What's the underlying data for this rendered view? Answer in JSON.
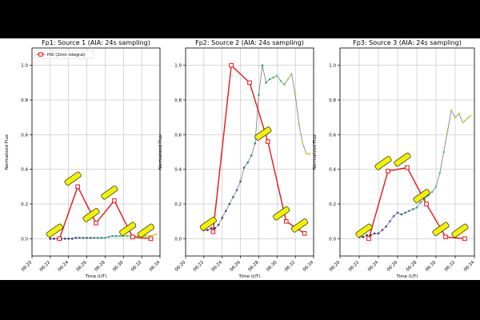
{
  "chart_data": [
    {
      "type": "line",
      "title": "Fp1: Source 1 (AIA: 24s sampling)",
      "xlabel": "Time (UT)",
      "ylabel": "Normalized Flux",
      "x_ticks": [
        "06:20",
        "06:22",
        "06:24",
        "06:26",
        "06:28",
        "06:30",
        "06:32",
        "06:34"
      ],
      "y_ticks": [
        "0.0",
        "0.2",
        "0.4",
        "0.6",
        "0.8",
        "1.0"
      ],
      "xlim": [
        "06:20",
        "06:34"
      ],
      "ylim": [
        -0.1,
        1.1
      ],
      "grid": true,
      "legend": {
        "location": "top-left",
        "entries": [
          "HXI (2min integral)"
        ]
      },
      "series": [
        {
          "name": "HXI (2min integral)",
          "color": "#e8141a",
          "marker": "open-square",
          "x": [
            "06:23:00",
            "06:25:00",
            "06:27:00",
            "06:29:00",
            "06:31:00",
            "06:33:00"
          ],
          "y": [
            0.0,
            0.3,
            0.09,
            0.22,
            0.01,
            0.0
          ]
        },
        {
          "color": "#777777",
          "marker": "colored-dots",
          "x": [
            "06:22:00",
            "06:22:24",
            "06:22:48",
            "06:23:12",
            "06:23:36",
            "06:24:00",
            "06:24:24",
            "06:24:48",
            "06:25:12",
            "06:25:36",
            "06:26:00",
            "06:26:24",
            "06:26:48",
            "06:27:12",
            "06:27:36",
            "06:28:00",
            "06:28:24",
            "06:28:48",
            "06:29:12",
            "06:29:36",
            "06:30:00",
            "06:30:24",
            "06:30:48",
            "06:31:12",
            "06:31:36",
            "06:32:00",
            "06:32:24",
            "06:32:48",
            "06:33:12",
            "06:33:36"
          ],
          "y": [
            0.0,
            0.0,
            0.0,
            0.0,
            0.0,
            0.0,
            0.0,
            0.005,
            0.005,
            0.005,
            0.005,
            0.005,
            0.005,
            0.005,
            0.005,
            0.005,
            0.01,
            0.015,
            0.015,
            0.015,
            0.015,
            0.015,
            0.015,
            0.015,
            0.015,
            0.015,
            0.015,
            0.015,
            0.02,
            0.025
          ]
        }
      ],
      "annotations": [
        {
          "x": "06:23:00",
          "y": 0.0,
          "text": "[ ]"
        },
        {
          "x": "06:25:00",
          "y": 0.3,
          "text": "[ ]"
        },
        {
          "x": "06:27:00",
          "y": 0.09,
          "text": "[ ]"
        },
        {
          "x": "06:29:00",
          "y": 0.22,
          "text": "[ ]"
        },
        {
          "x": "06:31:00",
          "y": 0.01,
          "text": "[ ]"
        },
        {
          "x": "06:33:00",
          "y": 0.0,
          "text": "[ ]"
        }
      ]
    },
    {
      "type": "line",
      "title": "Fp2: Source 2 (AIA: 24s sampling)",
      "xlabel": "Time (UT)",
      "ylabel": "Normalized Flux",
      "x_ticks": [
        "06:20",
        "06:22",
        "06:24",
        "06:26",
        "06:28",
        "06:30",
        "06:32",
        "06:34"
      ],
      "y_ticks": [
        "0.0",
        "0.2",
        "0.4",
        "0.6",
        "0.8",
        "1.0"
      ],
      "xlim": [
        "06:20",
        "06:34"
      ],
      "ylim": [
        -0.1,
        1.1
      ],
      "grid": true,
      "series": [
        {
          "name": "HXI (2min integral)",
          "color": "#e8141a",
          "marker": "open-square",
          "x": [
            "06:23:00",
            "06:25:00",
            "06:27:00",
            "06:29:00",
            "06:31:00",
            "06:33:00"
          ],
          "y": [
            0.04,
            1.0,
            0.9,
            0.56,
            0.1,
            0.03
          ]
        },
        {
          "color": "#777777",
          "marker": "colored-dots",
          "x": [
            "06:22:00",
            "06:22:24",
            "06:22:48",
            "06:23:12",
            "06:23:36",
            "06:24:00",
            "06:24:24",
            "06:24:48",
            "06:25:12",
            "06:25:36",
            "06:26:00",
            "06:26:24",
            "06:26:48",
            "06:27:12",
            "06:27:36",
            "06:28:00",
            "06:28:24",
            "06:28:48",
            "06:29:12",
            "06:29:36",
            "06:30:00",
            "06:30:24",
            "06:30:48",
            "06:31:12",
            "06:31:36",
            "06:32:00",
            "06:32:24",
            "06:32:48",
            "06:33:12",
            "06:33:36"
          ],
          "y": [
            0.05,
            0.05,
            0.06,
            0.06,
            0.08,
            0.12,
            0.16,
            0.2,
            0.24,
            0.28,
            0.33,
            0.41,
            0.44,
            0.48,
            0.55,
            0.83,
            1.0,
            0.9,
            0.92,
            0.93,
            0.94,
            0.91,
            0.89,
            0.92,
            0.95,
            0.83,
            0.66,
            0.55,
            0.49,
            0.49
          ]
        }
      ],
      "annotations": [
        {
          "x": "06:23:00",
          "y": 0.04,
          "text": "[ ]"
        },
        {
          "x": "06:31:00",
          "y": 0.1,
          "text": "[ ]"
        },
        {
          "x": "06:33:00",
          "y": 0.03,
          "text": "[ ]"
        },
        {
          "x": "06:29:00",
          "y": 0.56,
          "text": "[ ]"
        }
      ]
    },
    {
      "type": "line",
      "title": "Fp3: Source 3 (AIA: 24s sampling)",
      "xlabel": "Time (UT)",
      "ylabel": "Normalized Flux",
      "x_ticks": [
        "06:20",
        "06:22",
        "06:24",
        "06:26",
        "06:28",
        "06:30",
        "06:32",
        "06:34"
      ],
      "y_ticks": [
        "0.0",
        "0.2",
        "0.4",
        "0.6",
        "0.8",
        "1.0"
      ],
      "xlim": [
        "06:20",
        "06:34"
      ],
      "ylim": [
        -0.1,
        1.1
      ],
      "grid": true,
      "series": [
        {
          "name": "HXI (2min integral)",
          "color": "#e8141a",
          "marker": "open-square",
          "x": [
            "06:23:00",
            "06:25:00",
            "06:27:00",
            "06:29:00",
            "06:31:00",
            "06:33:00"
          ],
          "y": [
            0.0,
            0.39,
            0.41,
            0.2,
            0.01,
            0.0
          ]
        },
        {
          "color": "#777777",
          "marker": "colored-dots",
          "x": [
            "06:22:00",
            "06:22:24",
            "06:22:48",
            "06:23:12",
            "06:23:36",
            "06:24:00",
            "06:24:24",
            "06:24:48",
            "06:25:12",
            "06:25:36",
            "06:26:00",
            "06:26:24",
            "06:26:48",
            "06:27:12",
            "06:27:36",
            "06:28:00",
            "06:28:24",
            "06:28:48",
            "06:29:12",
            "06:29:36",
            "06:30:00",
            "06:30:24",
            "06:30:48",
            "06:31:12",
            "06:31:36",
            "06:32:00",
            "06:32:24",
            "06:32:48",
            "06:33:12",
            "06:33:36"
          ],
          "y": [
            0.01,
            0.01,
            0.02,
            0.02,
            0.03,
            0.03,
            0.05,
            0.07,
            0.1,
            0.13,
            0.15,
            0.14,
            0.15,
            0.16,
            0.17,
            0.18,
            0.21,
            0.23,
            0.25,
            0.27,
            0.3,
            0.38,
            0.5,
            0.62,
            0.74,
            0.7,
            0.72,
            0.67,
            0.69,
            0.71
          ]
        }
      ],
      "annotations": [
        {
          "x": "06:23:00",
          "y": 0.0,
          "text": "[ ]"
        },
        {
          "x": "06:25:00",
          "y": 0.39,
          "text": "[ ]"
        },
        {
          "x": "06:27:00",
          "y": 0.41,
          "text": "[ ]"
        },
        {
          "x": "06:29:00",
          "y": 0.2,
          "text": "[ ]"
        },
        {
          "x": "06:31:00",
          "y": 0.01,
          "text": "[ ]"
        },
        {
          "x": "06:33:00",
          "y": 0.0,
          "text": "[ ]"
        }
      ]
    }
  ],
  "colors": {
    "frame": "#000000",
    "background": "#ffffff",
    "hxi": "#e8141a",
    "aia_line": "#777777",
    "annotation_box": "#f2f200",
    "dot_palette": [
      "#3b1a6b",
      "#403a8f",
      "#2f5f9e",
      "#21869f",
      "#23a88e",
      "#57c66b",
      "#9fda3a",
      "#e6e21a"
    ]
  }
}
